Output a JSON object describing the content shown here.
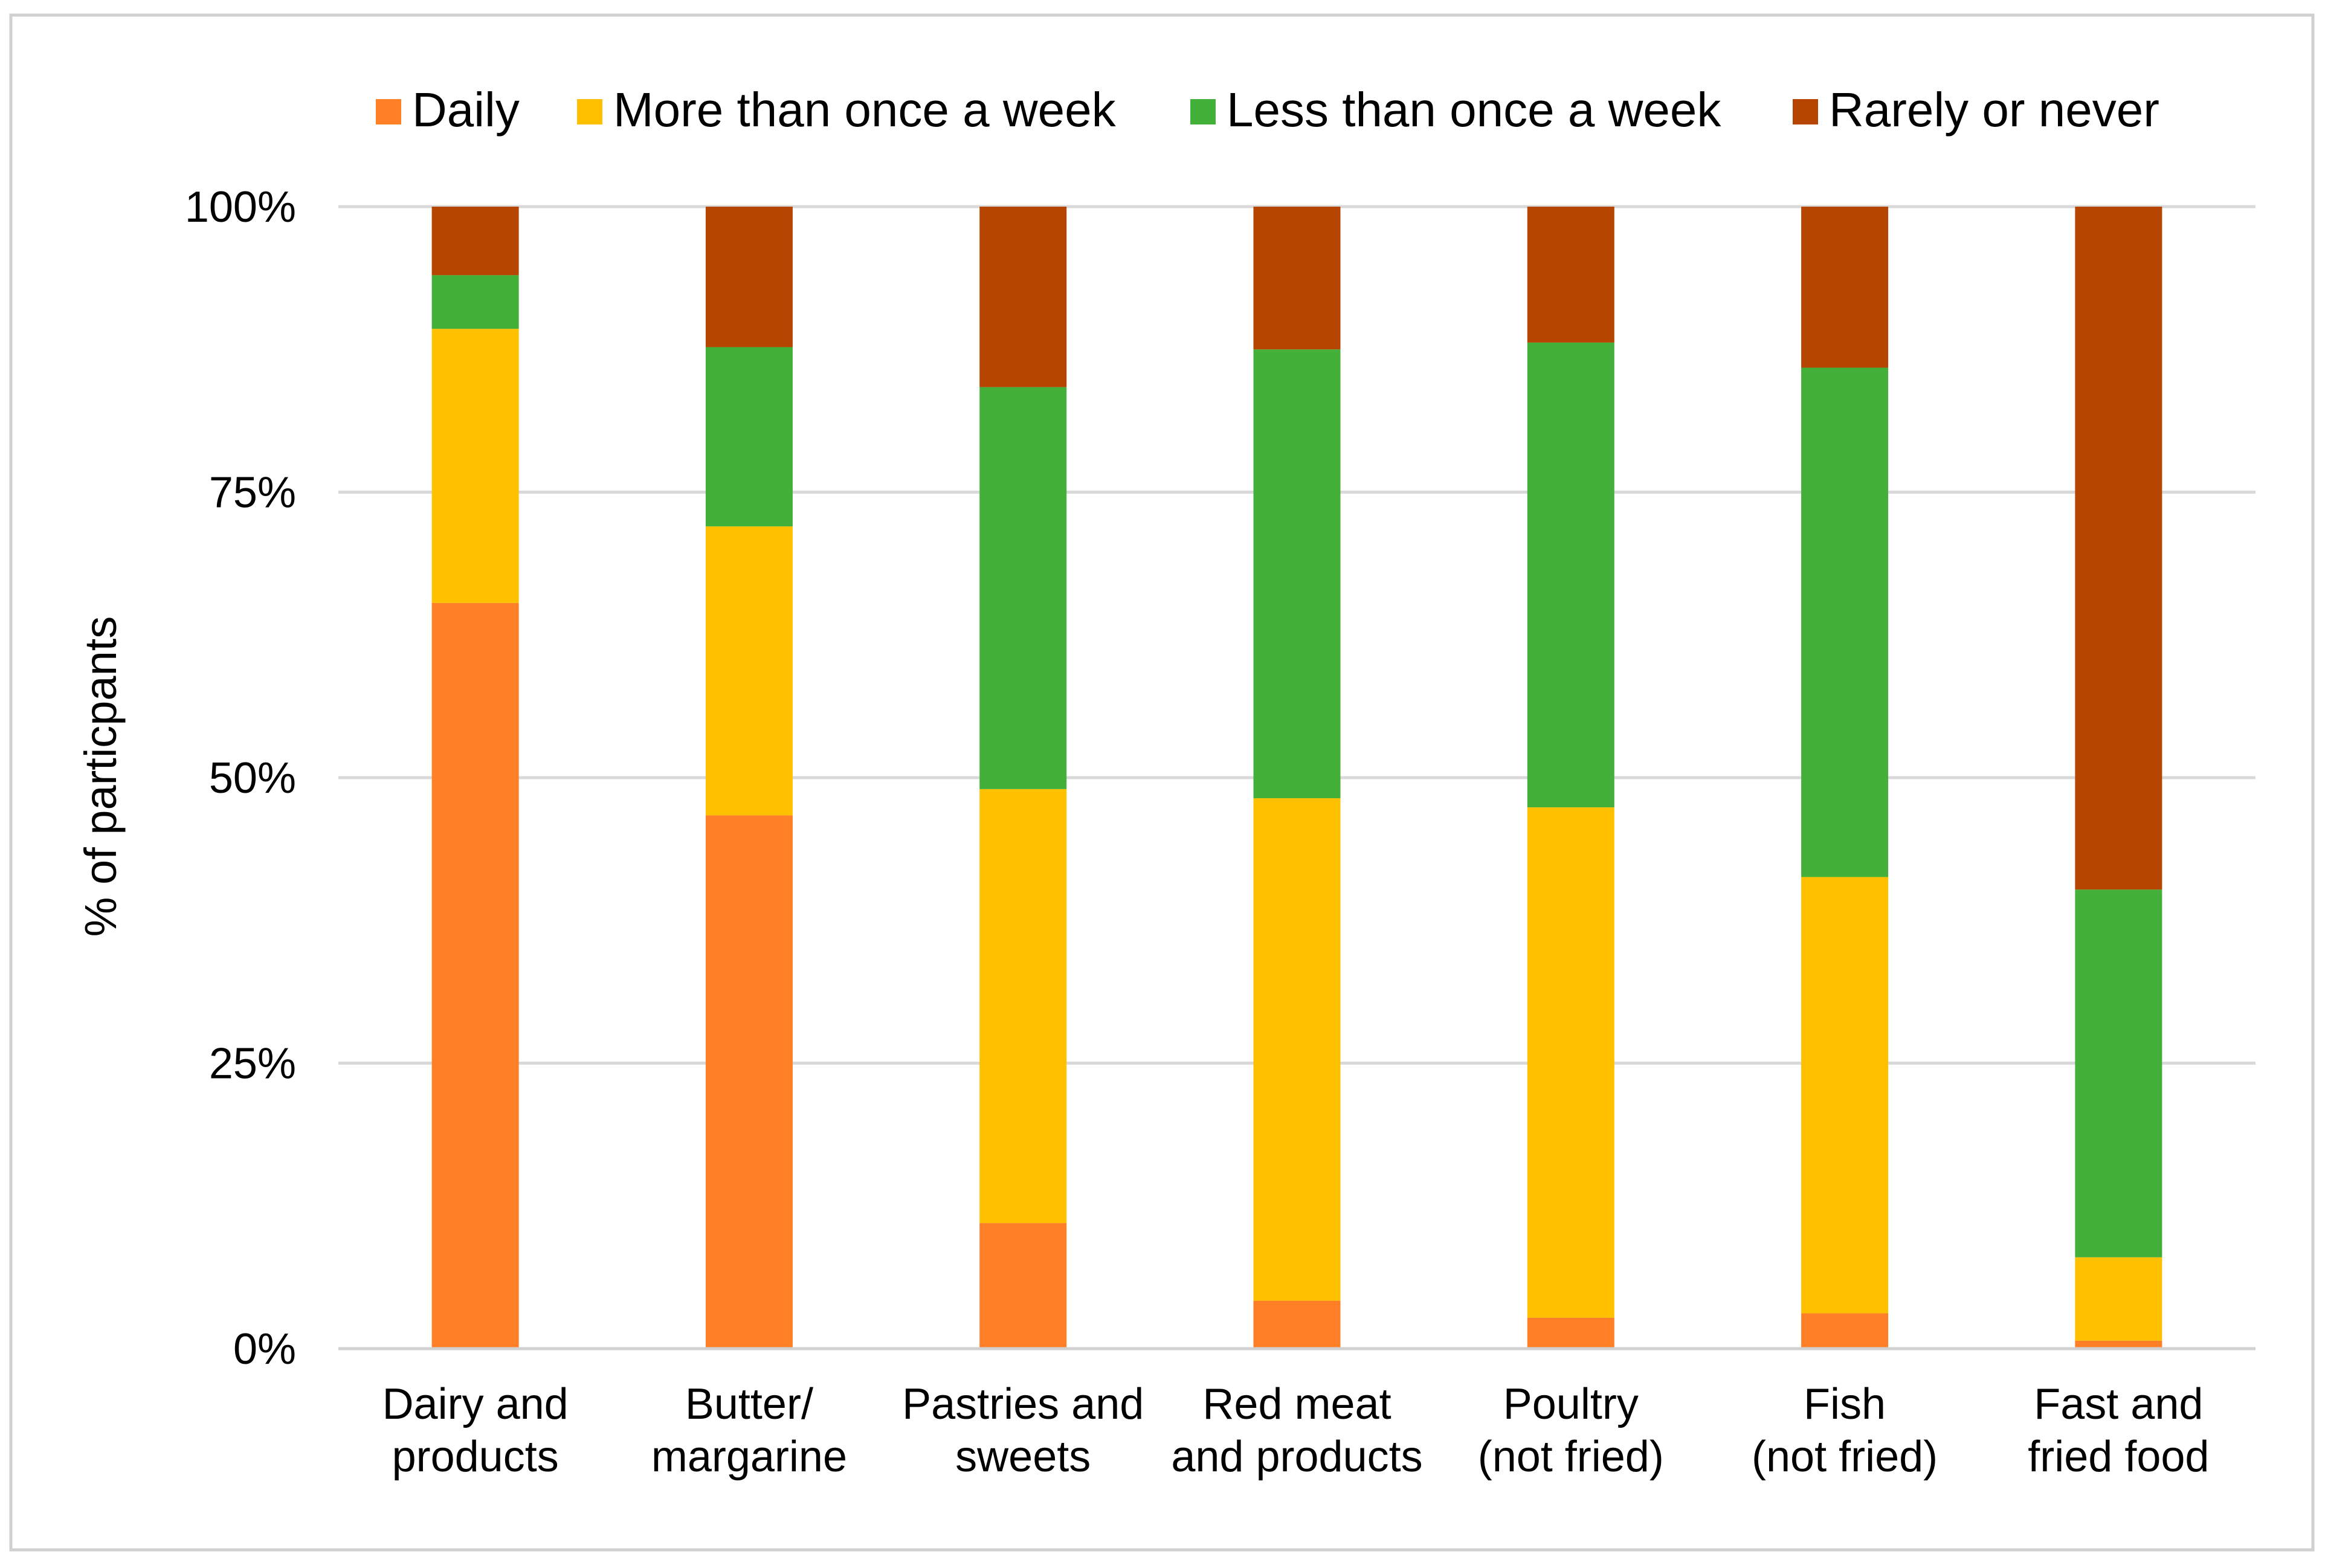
{
  "chart_data": {
    "type": "bar",
    "stacked": true,
    "title": "",
    "xlabel": "",
    "ylabel": "% of particpants",
    "ylim": [
      0,
      100
    ],
    "y_ticks": [
      "0%",
      "25%",
      "50%",
      "75%",
      "100%"
    ],
    "y_tick_values": [
      0,
      25,
      50,
      75,
      100
    ],
    "grid": true,
    "legend_position": "top",
    "categories": [
      [
        "Dairy and",
        "products"
      ],
      [
        "Butter/",
        "margarine"
      ],
      [
        "Pastries and",
        "sweets"
      ],
      [
        "Red meat",
        "and products"
      ],
      [
        "Poultry",
        "(not fried)"
      ],
      [
        "Fish",
        "(not fried)"
      ],
      [
        "Fast and",
        "fried food"
      ]
    ],
    "series": [
      {
        "name": "Daily",
        "color": "#FF7F27",
        "values": [
          65.3,
          46.7,
          11.0,
          4.2,
          2.7,
          3.1,
          0.7
        ]
      },
      {
        "name": "More than once a week",
        "color": "#FFC000",
        "values": [
          24.0,
          25.3,
          38.0,
          44.0,
          44.7,
          38.2,
          7.3
        ]
      },
      {
        "name": "Less than once a week",
        "color": "#43B03A",
        "values": [
          4.7,
          15.7,
          35.2,
          39.3,
          40.7,
          44.6,
          32.2
        ]
      },
      {
        "name": "Rarely or never",
        "color": "#B54500",
        "values": [
          6.0,
          12.3,
          15.8,
          12.5,
          11.9,
          14.1,
          59.8
        ]
      }
    ]
  }
}
